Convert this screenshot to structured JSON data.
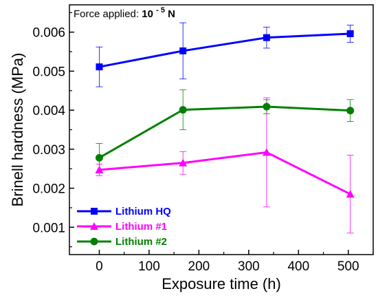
{
  "chart_data": {
    "type": "line",
    "xlabel": "Exposure time (h)",
    "ylabel": "Brinell hardness (MPa)",
    "xlim": [
      -60,
      550
    ],
    "ylim": [
      0.0003,
      0.0067
    ],
    "x_ticks": [
      0,
      100,
      200,
      300,
      400,
      500
    ],
    "x_tick_labels": [
      "0",
      "100",
      "200",
      "300",
      "400",
      "500"
    ],
    "y_ticks": [
      0.001,
      0.002,
      0.003,
      0.004,
      0.005,
      0.006
    ],
    "y_tick_labels": [
      "0.001",
      "0.002",
      "0.003",
      "0.004",
      "0.005",
      "0.006"
    ],
    "grid": false,
    "legend_position": "bottom-left",
    "annotation": {
      "prefix": "Force applied: ",
      "value": "10",
      "exponent": "- 5",
      "unit": " N"
    },
    "series": [
      {
        "name": "Lithium HQ",
        "color": "#0000ff",
        "marker": "square",
        "x": [
          0,
          168,
          336,
          504
        ],
        "y": [
          0.00511,
          0.00552,
          0.00586,
          0.00596
        ],
        "err": [
          0.00051,
          0.00072,
          0.00027,
          0.00022
        ]
      },
      {
        "name": "Lithium #1",
        "color": "#ff00ff",
        "marker": "triangle",
        "x": [
          0,
          168,
          336,
          504
        ],
        "y": [
          0.00247,
          0.00265,
          0.00292,
          0.00185
        ],
        "err": [
          0.00015,
          0.00029,
          0.0014,
          0.001
        ]
      },
      {
        "name": "Lithium #2",
        "color": "#008000",
        "marker": "circle",
        "x": [
          0,
          168,
          336,
          504
        ],
        "y": [
          0.00278,
          0.00401,
          0.00409,
          0.00399
        ],
        "err": [
          0.00037,
          0.00051,
          0.00018,
          0.00028
        ]
      }
    ]
  }
}
